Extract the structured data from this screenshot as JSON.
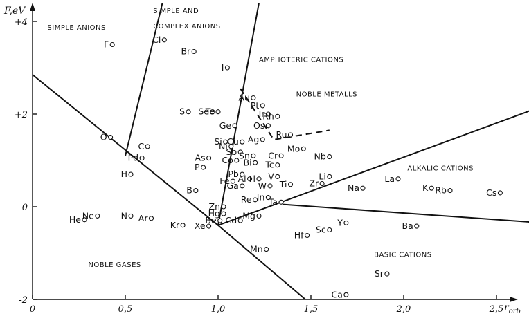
{
  "chart_data": {
    "type": "scatter",
    "xlabel": "r",
    "xlabel_sub": "orb",
    "ylabel": "F,eV",
    "xlim": [
      0,
      2.75
    ],
    "ylim": [
      -2,
      4.4
    ],
    "xticks": [
      {
        "v": 0,
        "t": "0"
      },
      {
        "v": 0.5,
        "t": "0,5"
      },
      {
        "v": 1.0,
        "t": "1,0"
      },
      {
        "v": 1.5,
        "t": "1,5"
      },
      {
        "v": 2.0,
        "t": "2,0"
      },
      {
        "v": 2.5,
        "t": "2,5"
      }
    ],
    "yticks": [
      {
        "v": 4,
        "t": "+4"
      },
      {
        "v": 2,
        "t": "+2"
      },
      {
        "v": 0,
        "t": "0"
      },
      {
        "v": -2,
        "t": "-2"
      }
    ],
    "regions": [
      {
        "text": "SIMPLE ANIONS",
        "x": 0.08,
        "y": 3.82
      },
      {
        "text": "SIMPLE AND",
        "x": 0.65,
        "y": 4.18
      },
      {
        "text": "COMPLEX ANIONS",
        "x": 0.65,
        "y": 3.85
      },
      {
        "text": "AMPHOTERIC CATIONS",
        "x": 1.22,
        "y": 3.13
      },
      {
        "text": "NOBLE METALLS",
        "x": 1.42,
        "y": 2.38
      },
      {
        "text": "ALKALIC CATIONS",
        "x": 2.02,
        "y": 0.78
      },
      {
        "text": "BASIC CATIONS",
        "x": 1.84,
        "y": -1.08
      },
      {
        "text": "NOBLE GASES",
        "x": 0.3,
        "y": -1.3
      }
    ],
    "boundaries": [
      {
        "style": "solid",
        "points": [
          [
            0.0,
            2.85
          ],
          [
            1.0,
            -0.4
          ],
          [
            1.47,
            -2.0
          ]
        ]
      },
      {
        "style": "solid",
        "points": [
          [
            0.5,
            1.1
          ],
          [
            0.7,
            4.4
          ]
        ]
      },
      {
        "style": "solid",
        "points": [
          [
            1.0,
            -0.4
          ],
          [
            1.22,
            4.4
          ]
        ]
      },
      {
        "style": "solid",
        "points": [
          [
            1.0,
            -0.4
          ],
          [
            2.7,
            2.1
          ]
        ]
      },
      {
        "style": "solid",
        "points": [
          [
            1.35,
            0.05
          ],
          [
            2.75,
            -0.35
          ]
        ]
      },
      {
        "style": "dashed",
        "points": [
          [
            1.12,
            2.55
          ],
          [
            1.3,
            1.45
          ],
          [
            1.6,
            1.65
          ]
        ]
      }
    ],
    "points": [
      {
        "label": "F",
        "x": 0.43,
        "y": 3.5
      },
      {
        "label": "Cl",
        "x": 0.71,
        "y": 3.6
      },
      {
        "label": "Br",
        "x": 0.87,
        "y": 3.35
      },
      {
        "label": "I",
        "x": 1.05,
        "y": 3.0
      },
      {
        "label": "Au",
        "x": 1.19,
        "y": 2.35
      },
      {
        "label": "Pt",
        "x": 1.24,
        "y": 2.18
      },
      {
        "label": "Ir",
        "x": 1.27,
        "y": 2.0
      },
      {
        "label": "Rh",
        "x": 1.32,
        "y": 1.95
      },
      {
        "label": "Os",
        "x": 1.27,
        "y": 1.75
      },
      {
        "label": "Ru",
        "x": 1.39,
        "y": 1.55
      },
      {
        "label": "Se",
        "x": 0.97,
        "y": 2.05
      },
      {
        "label": "Te",
        "x": 1.0,
        "y": 2.05
      },
      {
        "label": "S",
        "x": 0.84,
        "y": 2.05
      },
      {
        "label": "O",
        "x": 0.42,
        "y": 1.5
      },
      {
        "label": "C",
        "x": 0.62,
        "y": 1.3
      },
      {
        "label": "Pd",
        "x": 0.59,
        "y": 1.05
      },
      {
        "label": "H",
        "x": 0.53,
        "y": 0.7
      },
      {
        "label": "Ge",
        "x": 1.09,
        "y": 1.75
      },
      {
        "label": "Si",
        "x": 1.04,
        "y": 1.4
      },
      {
        "label": "Ni",
        "x": 1.07,
        "y": 1.3
      },
      {
        "label": "Cu",
        "x": 1.13,
        "y": 1.4
      },
      {
        "label": "Ag",
        "x": 1.24,
        "y": 1.45
      },
      {
        "label": "Mo",
        "x": 1.46,
        "y": 1.25
      },
      {
        "label": "Nb",
        "x": 1.6,
        "y": 1.08
      },
      {
        "label": "Sb",
        "x": 1.12,
        "y": 1.18
      },
      {
        "label": "Sn",
        "x": 1.19,
        "y": 1.1
      },
      {
        "label": "Cr",
        "x": 1.34,
        "y": 1.1
      },
      {
        "label": "Co",
        "x": 1.1,
        "y": 1.0
      },
      {
        "label": "Bi",
        "x": 1.2,
        "y": 0.95
      },
      {
        "label": "Tc",
        "x": 1.32,
        "y": 0.9
      },
      {
        "label": "Li",
        "x": 1.6,
        "y": 0.65
      },
      {
        "label": "Pb",
        "x": 1.13,
        "y": 0.7
      },
      {
        "label": "Al",
        "x": 1.17,
        "y": 0.6
      },
      {
        "label": "Tl",
        "x": 1.22,
        "y": 0.6
      },
      {
        "label": "V",
        "x": 1.32,
        "y": 0.65
      },
      {
        "label": "Fe",
        "x": 1.08,
        "y": 0.55
      },
      {
        "label": "Ga",
        "x": 1.13,
        "y": 0.45
      },
      {
        "label": "W",
        "x": 1.28,
        "y": 0.45
      },
      {
        "label": "Ti",
        "x": 1.39,
        "y": 0.48
      },
      {
        "label": "Zr",
        "x": 1.56,
        "y": 0.5
      },
      {
        "label": "Na",
        "x": 1.78,
        "y": 0.4
      },
      {
        "label": "La",
        "x": 1.97,
        "y": 0.6
      },
      {
        "label": "K",
        "x": 2.15,
        "y": 0.4
      },
      {
        "label": "Rb",
        "x": 2.25,
        "y": 0.35
      },
      {
        "label": "Cs",
        "x": 2.52,
        "y": 0.3
      },
      {
        "label": "As",
        "x": 0.95,
        "y": 1.05
      },
      {
        "label": "P",
        "x": 0.92,
        "y": 0.85
      },
      {
        "label": "B",
        "x": 0.88,
        "y": 0.35
      },
      {
        "label": "Zn",
        "x": 1.03,
        "y": 0.0
      },
      {
        "label": "Re",
        "x": 1.2,
        "y": 0.15
      },
      {
        "label": "In",
        "x": 1.27,
        "y": 0.2
      },
      {
        "label": "Ta",
        "x": 1.34,
        "y": 0.1
      },
      {
        "label": "Hg",
        "x": 1.03,
        "y": -0.15
      },
      {
        "label": "Be",
        "x": 1.01,
        "y": -0.3
      },
      {
        "label": "Cd",
        "x": 1.12,
        "y": -0.3
      },
      {
        "label": "Mg",
        "x": 1.22,
        "y": -0.2
      },
      {
        "label": "Xe",
        "x": 0.95,
        "y": -0.42
      },
      {
        "label": "He",
        "x": 0.28,
        "y": -0.28
      },
      {
        "label": "Ne",
        "x": 0.35,
        "y": -0.2
      },
      {
        "label": "N",
        "x": 0.53,
        "y": -0.2
      },
      {
        "label": "Ar",
        "x": 0.64,
        "y": -0.25
      },
      {
        "label": "Kr",
        "x": 0.81,
        "y": -0.4
      },
      {
        "label": "Hf",
        "x": 1.48,
        "y": -0.62
      },
      {
        "label": "Sc",
        "x": 1.6,
        "y": -0.5
      },
      {
        "label": "Y",
        "x": 1.69,
        "y": -0.35
      },
      {
        "label": "Ba",
        "x": 2.07,
        "y": -0.42
      },
      {
        "label": "Mn",
        "x": 1.26,
        "y": -0.92
      },
      {
        "label": "Sr",
        "x": 1.91,
        "y": -1.45
      },
      {
        "label": "Ca",
        "x": 1.69,
        "y": -1.9
      }
    ]
  }
}
